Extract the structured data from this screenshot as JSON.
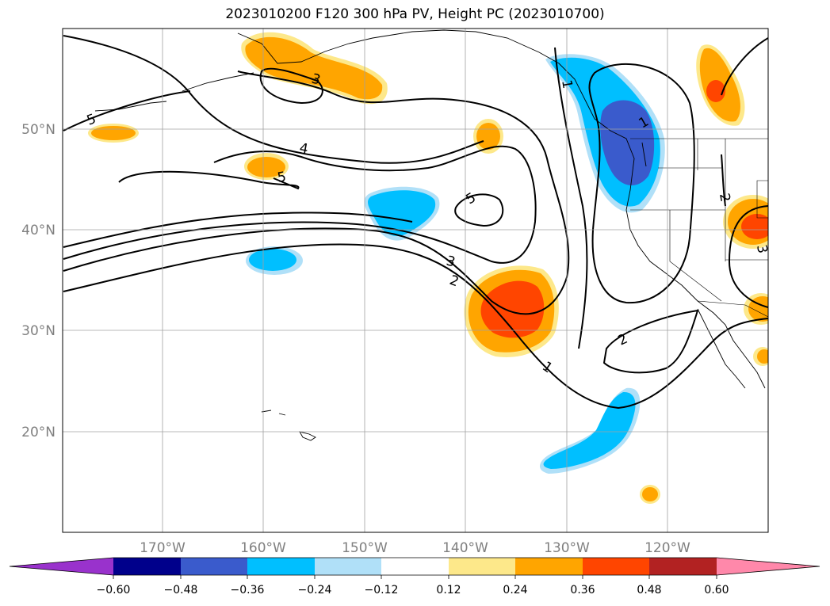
{
  "title": "2023010200 F120 300 hPa PV, Height PC (2023010700)",
  "lat_labels": [
    "50°N",
    "40°N",
    "30°N",
    "20°N"
  ],
  "lon_labels": [
    "170°W",
    "160°W",
    "150°W",
    "140°W",
    "130°W",
    "120°W"
  ],
  "contour_labels": [
    "1",
    "1",
    "1",
    "2",
    "2",
    "2",
    "3",
    "3",
    "3",
    "4",
    "5",
    "5",
    "5"
  ],
  "colorbar": {
    "ticks": [
      "−0.60",
      "−0.48",
      "−0.36",
      "−0.24",
      "−0.12",
      "0.12",
      "0.24",
      "0.36",
      "0.48",
      "0.60"
    ],
    "colors": [
      "#9932cc",
      "#00008b",
      "#3a5bcc",
      "#00bfff",
      "#b0e0f8",
      "#ffffff",
      "#fde88a",
      "#ffa500",
      "#ff4500",
      "#b22222",
      "#ff88aa",
      "#ff88aa"
    ]
  }
}
